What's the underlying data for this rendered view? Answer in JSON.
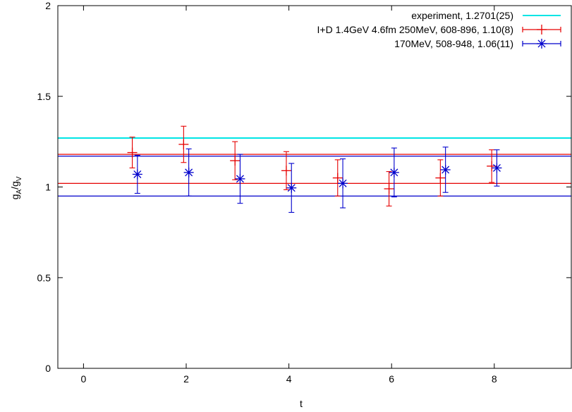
{
  "chart_data": {
    "type": "scatter",
    "xlabel": "t",
    "ylabel": {
      "base": "g",
      "sub1": "A",
      "sep": "/g",
      "sub2": "V"
    },
    "xlim": [
      -0.5,
      9.5
    ],
    "ylim": [
      0,
      2
    ],
    "xticks": [
      "0",
      "2",
      "4",
      "6",
      "8"
    ],
    "yticks": [
      "0",
      "0.5",
      "1",
      "1.5",
      "2"
    ],
    "grid": false,
    "legend_position": "top-right",
    "bands": [
      {
        "series": "experiment",
        "color": "#00e5e5",
        "y": 1.27
      },
      {
        "series": "ID",
        "color": "#e60000",
        "low": 1.02,
        "high": 1.18,
        "x0": -0.5,
        "x1": 9.5
      },
      {
        "series": "170",
        "color": "#0000cc",
        "low": 0.95,
        "high": 1.17,
        "x0": -0.5,
        "x1": 9.5
      }
    ],
    "series": [
      {
        "name": "experiment, 1.2701(25)",
        "color": "#00e5e5",
        "marker": "line"
      },
      {
        "name": "I+D 1.4GeV 4.6fm 250MeV, 608-896, 1.10(8)",
        "color": "#e60000",
        "marker": "plus",
        "points": [
          {
            "x": 0.95,
            "y": 1.19,
            "err": 0.085
          },
          {
            "x": 1.95,
            "y": 1.235,
            "err": 0.1
          },
          {
            "x": 2.95,
            "y": 1.145,
            "err": 0.105
          },
          {
            "x": 3.95,
            "y": 1.09,
            "err": 0.105
          },
          {
            "x": 4.95,
            "y": 1.05,
            "err": 0.1
          },
          {
            "x": 5.95,
            "y": 0.99,
            "err": 0.095
          },
          {
            "x": 6.95,
            "y": 1.05,
            "err": 0.1
          },
          {
            "x": 7.95,
            "y": 1.115,
            "err": 0.09
          }
        ]
      },
      {
        "name": "170MeV, 508-948, 1.06(11)",
        "color": "#0000cc",
        "marker": "star",
        "points": [
          {
            "x": 1.05,
            "y": 1.07,
            "err": 0.105
          },
          {
            "x": 2.05,
            "y": 1.08,
            "err": 0.13
          },
          {
            "x": 3.05,
            "y": 1.045,
            "err": 0.135
          },
          {
            "x": 4.05,
            "y": 0.995,
            "err": 0.135
          },
          {
            "x": 5.05,
            "y": 1.02,
            "err": 0.135
          },
          {
            "x": 6.05,
            "y": 1.08,
            "err": 0.135
          },
          {
            "x": 7.05,
            "y": 1.095,
            "err": 0.125
          },
          {
            "x": 8.05,
            "y": 1.105,
            "err": 0.1
          }
        ]
      }
    ]
  }
}
